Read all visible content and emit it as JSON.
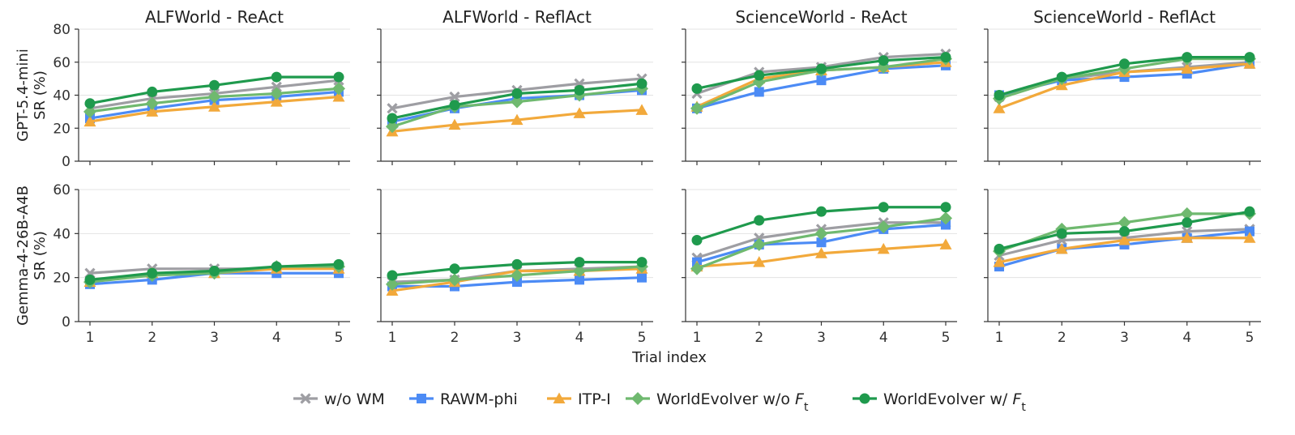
{
  "chart_data": {
    "type": "line",
    "xlabel": "Trial index",
    "x": [
      1,
      2,
      3,
      4,
      5
    ],
    "row_labels": [
      "GPT-5.4-mini\nSR (%)",
      "Gemma-4-26B-A4B\nSR (%)"
    ],
    "row_ylims": [
      [
        0,
        80
      ],
      [
        0,
        60
      ]
    ],
    "row_yticks": [
      [
        0,
        20,
        40,
        60,
        80
      ],
      [
        0,
        20,
        40,
        60
      ]
    ],
    "legend_position": "bottom-center",
    "grid": "horizontal",
    "series_styles": [
      {
        "name": "w/o WM",
        "color": "#9e9ea3",
        "marker": "x"
      },
      {
        "name": "RAWM-phi",
        "color": "#4c8bf5",
        "marker": "square"
      },
      {
        "name": "ITP-I",
        "color": "#f2a93b",
        "marker": "triangle"
      },
      {
        "name": "WorldEvolver w/o F_t",
        "color": "#6fb96f",
        "marker": "diamond"
      },
      {
        "name": "WorldEvolver w/ F_t",
        "color": "#1f9a4d",
        "marker": "circle"
      }
    ],
    "panels": [
      {
        "row": 0,
        "col": 0,
        "title": "ALFWorld - ReAct",
        "series": [
          {
            "name": "w/o WM",
            "values": [
              32,
              38,
              41,
              45,
              49
            ]
          },
          {
            "name": "RAWM-phi",
            "values": [
              26,
              32,
              37,
              39,
              42
            ]
          },
          {
            "name": "ITP-I",
            "values": [
              24,
              30,
              33,
              36,
              39
            ]
          },
          {
            "name": "WorldEvolver w/o F_t",
            "values": [
              30,
              35,
              39,
              41,
              44
            ]
          },
          {
            "name": "WorldEvolver w/ F_t",
            "values": [
              35,
              42,
              46,
              51,
              51
            ]
          }
        ]
      },
      {
        "row": 0,
        "col": 1,
        "title": "ALFWorld - ReflAct",
        "series": [
          {
            "name": "w/o WM",
            "values": [
              32,
              39,
              43,
              47,
              50
            ]
          },
          {
            "name": "RAWM-phi",
            "values": [
              24,
              32,
              38,
              40,
              43
            ]
          },
          {
            "name": "ITP-I",
            "values": [
              18,
              22,
              25,
              29,
              31
            ]
          },
          {
            "name": "WorldEvolver w/o F_t",
            "values": [
              21,
              33,
              36,
              40,
              44
            ]
          },
          {
            "name": "WorldEvolver w/ F_t",
            "values": [
              26,
              34,
              41,
              43,
              47
            ]
          }
        ]
      },
      {
        "row": 0,
        "col": 2,
        "title": "ScienceWorld - ReAct",
        "series": [
          {
            "name": "w/o WM",
            "values": [
              41,
              54,
              57,
              63,
              65
            ]
          },
          {
            "name": "RAWM-phi",
            "values": [
              32,
              42,
              49,
              56,
              58
            ]
          },
          {
            "name": "ITP-I",
            "values": [
              33,
              50,
              55,
              57,
              60
            ]
          },
          {
            "name": "WorldEvolver w/o F_t",
            "values": [
              32,
              48,
              55,
              57,
              62
            ]
          },
          {
            "name": "WorldEvolver w/ F_t",
            "values": [
              44,
              52,
              56,
              61,
              63
            ]
          }
        ]
      },
      {
        "row": 0,
        "col": 3,
        "title": "ScienceWorld - ReflAct",
        "series": [
          {
            "name": "w/o WM",
            "values": [
              39,
              50,
              54,
              57,
              60
            ]
          },
          {
            "name": "RAWM-phi",
            "values": [
              40,
              49,
              51,
              53,
              59
            ]
          },
          {
            "name": "ITP-I",
            "values": [
              32,
              46,
              54,
              56,
              59
            ]
          },
          {
            "name": "WorldEvolver w/o F_t",
            "values": [
              38,
              50,
              56,
              62,
              62
            ]
          },
          {
            "name": "WorldEvolver w/ F_t",
            "values": [
              40,
              51,
              59,
              63,
              63
            ]
          }
        ]
      },
      {
        "row": 1,
        "col": 0,
        "title": "",
        "series": [
          {
            "name": "w/o WM",
            "values": [
              22,
              24,
              24,
              24,
              25
            ]
          },
          {
            "name": "RAWM-phi",
            "values": [
              17,
              19,
              22,
              22,
              22
            ]
          },
          {
            "name": "ITP-I",
            "values": [
              18,
              22,
              22,
              24,
              24
            ]
          },
          {
            "name": "WorldEvolver w/o F_t",
            "values": [
              18,
              21,
              22,
              25,
              25
            ]
          },
          {
            "name": "WorldEvolver w/ F_t",
            "values": [
              19,
              22,
              23,
              25,
              26
            ]
          }
        ]
      },
      {
        "row": 1,
        "col": 1,
        "title": "",
        "series": [
          {
            "name": "w/o WM",
            "values": [
              18,
              19,
              23,
              24,
              25
            ]
          },
          {
            "name": "RAWM-phi",
            "values": [
              16,
              16,
              18,
              19,
              20
            ]
          },
          {
            "name": "ITP-I",
            "values": [
              14,
              18,
              23,
              23,
              24
            ]
          },
          {
            "name": "WorldEvolver w/o F_t",
            "values": [
              17,
              19,
              21,
              23,
              25
            ]
          },
          {
            "name": "WorldEvolver w/ F_t",
            "values": [
              21,
              24,
              26,
              27,
              27
            ]
          }
        ]
      },
      {
        "row": 1,
        "col": 2,
        "title": "",
        "series": [
          {
            "name": "w/o WM",
            "values": [
              29,
              38,
              42,
              45,
              45
            ]
          },
          {
            "name": "RAWM-phi",
            "values": [
              27,
              35,
              36,
              42,
              44
            ]
          },
          {
            "name": "ITP-I",
            "values": [
              25,
              27,
              31,
              33,
              35
            ]
          },
          {
            "name": "WorldEvolver w/o F_t",
            "values": [
              24,
              35,
              40,
              43,
              47
            ]
          },
          {
            "name": "WorldEvolver w/ F_t",
            "values": [
              37,
              46,
              50,
              52,
              52
            ]
          }
        ]
      },
      {
        "row": 1,
        "col": 3,
        "title": "",
        "series": [
          {
            "name": "w/o WM",
            "values": [
              30,
              37,
              38,
              41,
              42
            ]
          },
          {
            "name": "RAWM-phi",
            "values": [
              25,
              33,
              35,
              38,
              41
            ]
          },
          {
            "name": "ITP-I",
            "values": [
              27,
              33,
              37,
              38,
              38
            ]
          },
          {
            "name": "WorldEvolver w/o F_t",
            "values": [
              32,
              42,
              45,
              49,
              49
            ]
          },
          {
            "name": "WorldEvolver w/ F_t",
            "values": [
              33,
              40,
              41,
              45,
              50
            ]
          }
        ]
      }
    ]
  }
}
